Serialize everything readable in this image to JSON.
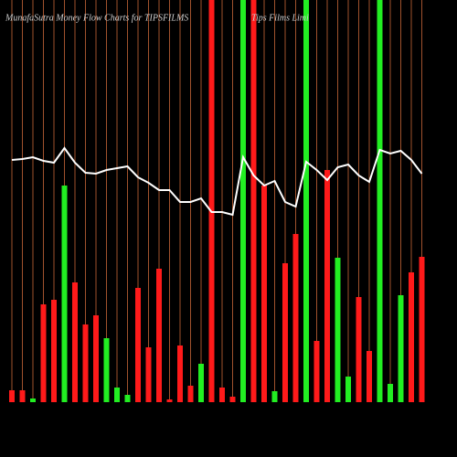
{
  "chart_data": {
    "type": "bar",
    "title": "MunafaSutra  Money Flow  Charts for TIPSFILMS",
    "subtitle": "Tips Films Limi",
    "values": [
      13,
      13,
      4,
      107,
      112,
      237,
      131,
      85,
      95,
      70,
      16,
      8,
      125,
      60,
      146,
      3,
      62,
      18,
      42,
      440,
      16,
      6,
      440,
      440,
      237,
      12,
      152,
      184,
      440,
      67,
      254,
      158,
      28,
      115,
      56,
      440,
      20,
      117,
      142,
      159
    ],
    "colors": [
      "#ff1a1a",
      "#ff1a1a",
      "#22ee22",
      "#ff1a1a",
      "#ff1a1a",
      "#22ee22",
      "#ff1a1a",
      "#ff1a1a",
      "#ff1a1a",
      "#22ee22",
      "#22ee22",
      "#22ee22",
      "#ff1a1a",
      "#ff1a1a",
      "#ff1a1a",
      "#ff1a1a",
      "#ff1a1a",
      "#ff1a1a",
      "#22ee22",
      "#ff1a1a",
      "#ff1a1a",
      "#ff1a1a",
      "#22ee22",
      "#ff1a1a",
      "#ff1a1a",
      "#22ee22",
      "#ff1a1a",
      "#ff1a1a",
      "#22ee22",
      "#ff1a1a",
      "#ff1a1a",
      "#22ee22",
      "#22ee22",
      "#ff1a1a",
      "#ff1a1a",
      "#22ee22",
      "#22ee22",
      "#22ee22",
      "#ff1a1a",
      "#ff1a1a"
    ],
    "ylim": [
      0,
      440
    ],
    "line": {
      "color": "#ffffff",
      "axis": "y2",
      "values": [
        265,
        266,
        268,
        264,
        262,
        278,
        262,
        251,
        250,
        254,
        256,
        258,
        246,
        240,
        232,
        232,
        219,
        219,
        223,
        208,
        208,
        205,
        268,
        248,
        237,
        242,
        219,
        214,
        263,
        254,
        243,
        257,
        260,
        248,
        241,
        276,
        272,
        275,
        265,
        250
      ]
    },
    "y2lim": [
      0,
      440
    ],
    "grid_color": "#a0522d"
  }
}
